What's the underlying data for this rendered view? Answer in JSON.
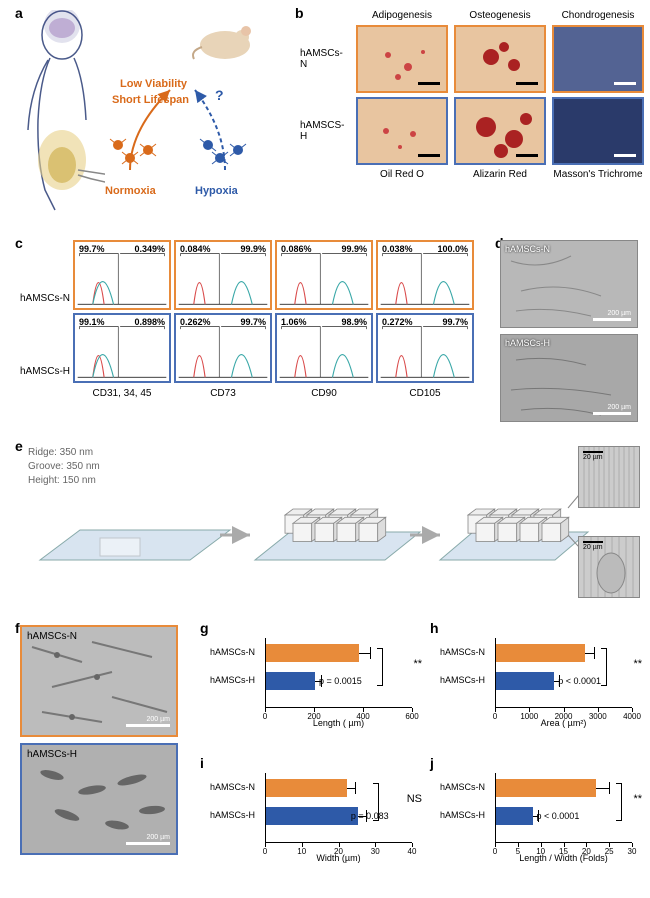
{
  "panel_a": {
    "label": "a",
    "text_low": "Low Viability",
    "text_short": "Short Lifespan",
    "text_norm": "Normoxia",
    "text_hyp": "Hypoxia",
    "neuron_color_n": "#d96a1a",
    "neuron_color_h": "#2e5aa8"
  },
  "panel_b": {
    "label": "b",
    "col_headers": [
      "Adipogenesis",
      "Osteogenesis",
      "Chondrogenesis"
    ],
    "row_labels": [
      "hAMSCs-N",
      "hAMSCS-H"
    ],
    "foot_labels": [
      "Oil Red O",
      "Alizarin Red",
      "Masson's Trichrome"
    ],
    "border_n": "#e88b3a",
    "border_h": "#4a6fb5"
  },
  "panel_c": {
    "label": "c",
    "markers": [
      "CD31, 34, 45",
      "CD73",
      "CD90",
      "CD105"
    ],
    "row_labels": [
      "hAMSCs-N",
      "hAMSCs-H"
    ],
    "cells": [
      [
        {
          "l": "99.7%",
          "r": "0.349%"
        },
        {
          "l": "0.084%",
          "r": "99.9%"
        },
        {
          "l": "0.086%",
          "r": "99.9%"
        },
        {
          "l": "0.038%",
          "r": "100.0%"
        }
      ],
      [
        {
          "l": "99.1%",
          "r": "0.898%"
        },
        {
          "l": "0.262%",
          "r": "99.7%"
        },
        {
          "l": "1.06%",
          "r": "98.9%"
        },
        {
          "l": "0.272%",
          "r": "99.7%"
        }
      ]
    ],
    "curve_color_iso": "#d94a4a",
    "curve_color_pos": "#3aa8a8"
  },
  "panel_d": {
    "label": "d",
    "labels": [
      "hAMSCs-N",
      "hAMSCs-H"
    ],
    "scalebar": "200 µm"
  },
  "panel_e": {
    "label": "e",
    "spec_ridge": "Ridge: 350 nm",
    "spec_groove": "Groove: 350 nm",
    "spec_height": "Height: 150 nm",
    "scalebar": "20 µm"
  },
  "panel_f": {
    "label": "f",
    "labels": [
      "hAMSCs-N",
      "hAMSCs-H"
    ],
    "scalebar": "200 µm"
  },
  "charts": {
    "g": {
      "label": "g",
      "ylabels": [
        "hAMSCs-N",
        "hAMSCs-H"
      ],
      "xlab": "Length ( µm)",
      "xmax": 600,
      "xtick": 200,
      "vals": [
        380,
        200
      ],
      "errs": [
        50,
        30
      ],
      "p": "p = 0.0015",
      "sig": "**"
    },
    "h": {
      "label": "h",
      "ylabels": [
        "hAMSCs-N",
        "hAMSCs-H"
      ],
      "xlab": "Area ( µm²)",
      "xmax": 4000,
      "xtick": 1000,
      "vals": [
        2600,
        1700
      ],
      "errs": [
        300,
        180
      ],
      "p": "p < 0.0001",
      "sig": "**"
    },
    "i": {
      "label": "i",
      "ylabels": [
        "hAMSCs-N",
        "hAMSCs-H"
      ],
      "xlab": "Width (µm)",
      "xmax": 40,
      "xtick": 10,
      "vals": [
        22,
        25
      ],
      "errs": [
        2.5,
        2.5
      ],
      "p": "p = 0.083",
      "sig": "NS"
    },
    "j": {
      "label": "j",
      "ylabels": [
        "hAMSCs-N",
        "hAMSCs-H"
      ],
      "xlab": "Length / Width (Folds)",
      "xmax": 30,
      "xtick": 5,
      "vals": [
        22,
        8
      ],
      "errs": [
        3,
        1.5
      ],
      "p": "p < 0.0001",
      "sig": "**"
    }
  },
  "colors": {
    "n": "#e88b3a",
    "h": "#2e5aa8"
  }
}
